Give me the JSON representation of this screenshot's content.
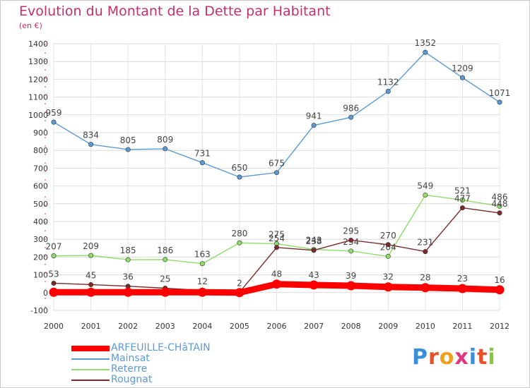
{
  "title": "Evolution du Montant de la Dette par Habitant",
  "subtitle": "(en €)",
  "logo_text": "Proxiti",
  "chart_data": {
    "type": "line",
    "title": "Evolution du Montant de la Dette par Habitant",
    "subtitle": "(en €)",
    "ylim": [
      -100,
      1400
    ],
    "yticks": [
      -100,
      0,
      100,
      200,
      300,
      400,
      500,
      600,
      700,
      800,
      900,
      1000,
      1100,
      1200,
      1300,
      1400
    ],
    "x": [
      "2000",
      "2001",
      "2002",
      "2003",
      "2004",
      "2005",
      "2006",
      "2007",
      "2008",
      "2009",
      "2010",
      "2011",
      "2012"
    ],
    "grid": true,
    "legend_position": "bottom-left",
    "series": [
      {
        "name": "ARFEUILLE-CHâTAIN",
        "color": "#ff0000",
        "values": [
          2,
          2,
          2,
          2,
          2,
          0,
          48,
          43,
          39,
          32,
          28,
          23,
          16
        ],
        "labels": [
          "",
          "",
          "",
          "",
          "",
          "",
          "48",
          "43",
          "39",
          "32",
          "28",
          "23",
          "16"
        ]
      },
      {
        "name": "Mainsat",
        "color": "#5b9bd5",
        "values": [
          959,
          834,
          805,
          809,
          731,
          650,
          675,
          941,
          986,
          1132,
          1352,
          1209,
          1071
        ],
        "labels": [
          "959",
          "834",
          "805",
          "809",
          "731",
          "650",
          "675",
          "941",
          "986",
          "1132",
          "1352",
          "1209",
          "1071"
        ]
      },
      {
        "name": "Reterre",
        "color": "#8fdc6a",
        "values": [
          207,
          209,
          185,
          186,
          163,
          280,
          275,
          243,
          234,
          204,
          549,
          521,
          486
        ],
        "labels": [
          "207",
          "209",
          "185",
          "186",
          "163",
          "280",
          "275",
          "243",
          "234",
          "204",
          "549",
          "521",
          "486"
        ]
      },
      {
        "name": "Rougnat",
        "color": "#7a2a2a",
        "values": [
          53,
          45,
          36,
          25,
          12,
          2,
          254,
          238,
          295,
          270,
          231,
          477,
          448
        ],
        "labels": [
          "53",
          "45",
          "36",
          "25",
          "12",
          "2",
          "254",
          "238",
          "295",
          "270",
          "231",
          "477",
          "448"
        ]
      }
    ]
  },
  "colors": {
    "title": "#c2306d",
    "grid": "#d9d9d9",
    "axis_text": "#333333"
  }
}
